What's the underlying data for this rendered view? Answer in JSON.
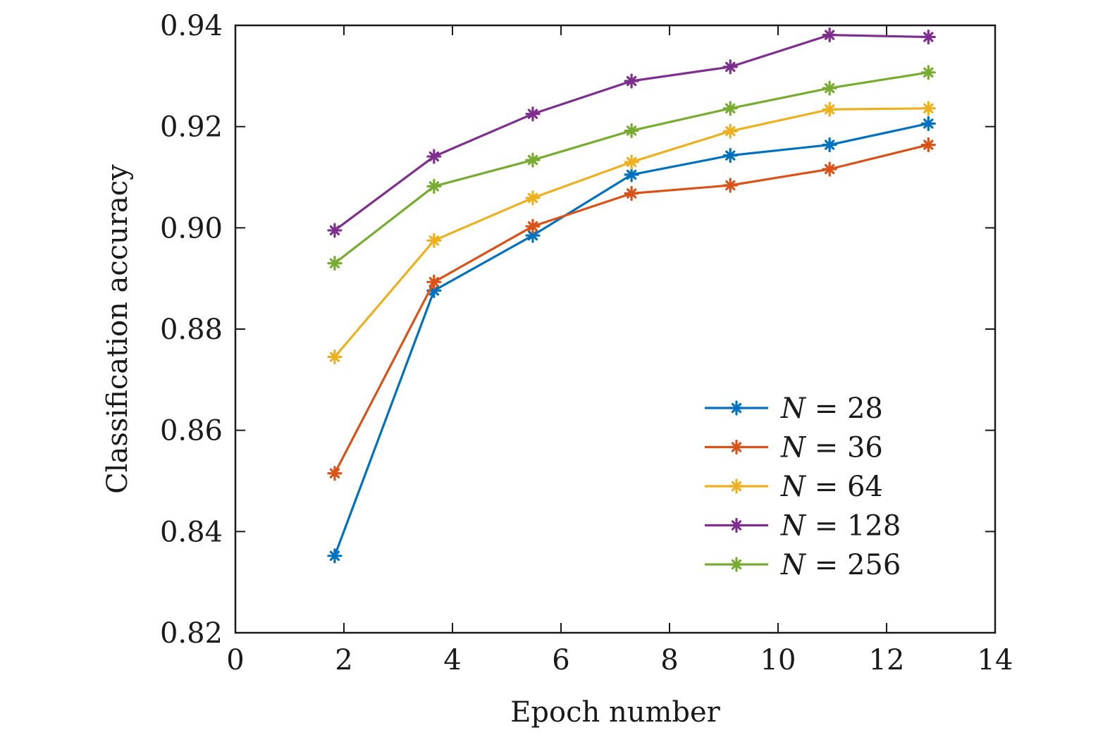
{
  "chart_data": {
    "type": "line",
    "title": "",
    "xlabel": "Epoch number",
    "ylabel": "Classification accuracy",
    "xlim": [
      0,
      14
    ],
    "ylim": [
      0.82,
      0.94
    ],
    "xticks": [
      0,
      2,
      4,
      6,
      8,
      10,
      12,
      14
    ],
    "xtick_labels": [
      "0",
      "2",
      "4",
      "6",
      "8",
      "10",
      "12",
      "14"
    ],
    "yticks": [
      0.82,
      0.84,
      0.86,
      0.88,
      0.9,
      0.92,
      0.94
    ],
    "ytick_labels": [
      "0.82",
      "0.84",
      "0.86",
      "0.88",
      "0.90",
      "0.92",
      "0.94"
    ],
    "grid": false,
    "legend_position": "bottom-right",
    "marker": "asterisk",
    "x": [
      1.83,
      3.66,
      5.48,
      7.3,
      9.12,
      10.95,
      12.77
    ],
    "series": [
      {
        "name": "N = 28",
        "legend_var": "N",
        "legend_rest": " = 28",
        "color": "#0072bd",
        "values": [
          0.8352,
          0.8876,
          0.8985,
          0.9105,
          0.9143,
          0.9164,
          0.9206
        ]
      },
      {
        "name": "N = 36",
        "legend_var": "N",
        "legend_rest": " = 36",
        "color": "#d95319",
        "values": [
          0.8515,
          0.8893,
          0.9003,
          0.9068,
          0.9084,
          0.9116,
          0.9164
        ]
      },
      {
        "name": "N = 64",
        "legend_var": "N",
        "legend_rest": " = 64",
        "color": "#edb120",
        "values": [
          0.8745,
          0.8975,
          0.9059,
          0.913,
          0.9191,
          0.9234,
          0.9236
        ]
      },
      {
        "name": "N = 128",
        "legend_var": "N",
        "legend_rest": " = 128",
        "color": "#7e2f8e",
        "values": [
          0.8995,
          0.9141,
          0.9225,
          0.929,
          0.9318,
          0.9381,
          0.9377
        ]
      },
      {
        "name": "N = 256",
        "legend_var": "N",
        "legend_rest": " = 256",
        "color": "#77ac30",
        "values": [
          0.893,
          0.9082,
          0.9134,
          0.9192,
          0.9236,
          0.9276,
          0.9307
        ]
      }
    ]
  }
}
